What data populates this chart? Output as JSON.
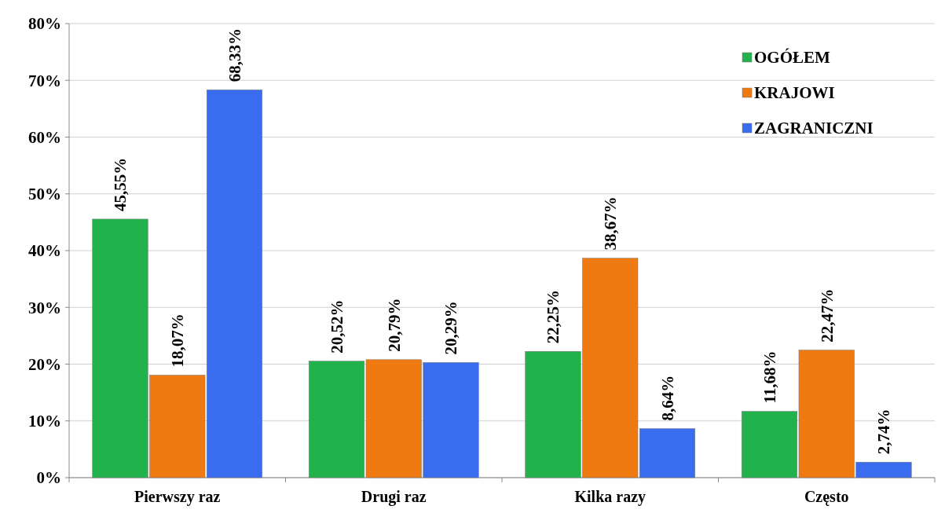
{
  "chart_data": {
    "type": "bar",
    "categories": [
      "Pierwszy raz",
      "Drugi raz",
      "Kilka razy",
      "Często"
    ],
    "series": [
      {
        "name": "OGÓŁEM",
        "color": "#22b24c",
        "values": [
          45.55,
          20.52,
          22.25,
          11.68
        ],
        "value_labels": [
          "45,55%",
          "20,52%",
          "22,25%",
          "11,68%"
        ]
      },
      {
        "name": "KRAJOWI",
        "color": "#f07a12",
        "values": [
          18.07,
          20.79,
          38.67,
          22.47
        ],
        "value_labels": [
          "18,07%",
          "20,79%",
          "38,67%",
          "22,47%"
        ]
      },
      {
        "name": "ZAGRANICZNI",
        "color": "#3a6cf0",
        "values": [
          68.33,
          20.29,
          8.64,
          2.74
        ],
        "value_labels": [
          "68,33%",
          "20,29%",
          "8,64%",
          "2,74%"
        ]
      }
    ],
    "ylim": [
      0,
      80
    ],
    "yticks": [
      {
        "value": 0,
        "label": "0%"
      },
      {
        "value": 10,
        "label": "10%"
      },
      {
        "value": 20,
        "label": "20%"
      },
      {
        "value": 30,
        "label": "30%"
      },
      {
        "value": 40,
        "label": "40%"
      },
      {
        "value": 50,
        "label": "50%"
      },
      {
        "value": 60,
        "label": "60%"
      },
      {
        "value": 70,
        "label": "70%"
      },
      {
        "value": 80,
        "label": "80%"
      }
    ],
    "grid": "y",
    "legend": "top right"
  }
}
